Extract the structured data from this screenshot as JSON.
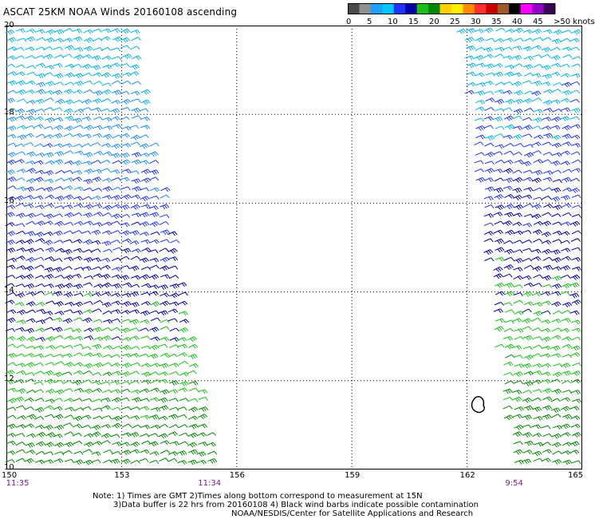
{
  "title": "ASCAT 25KM NOAA Winds 20160108 ascending",
  "legend": {
    "colors": [
      "#4a4a4a",
      "#909090",
      "#1ea0ff",
      "#00c8ff",
      "#1f33ff",
      "#0000a8",
      "#16c016",
      "#008800",
      "#ffd000",
      "#ffee00",
      "#ff8a00",
      "#ff3030",
      "#cc0000",
      "#a05a28",
      "#000000",
      "#ff00ff",
      "#9600c8",
      "#3c005a"
    ],
    "labels": [
      "0",
      "5",
      "10",
      "15",
      "20",
      "25",
      "30",
      "35",
      "40",
      "45",
      ">50 knots"
    ],
    "tick_values": [
      0,
      5,
      10,
      15,
      20,
      25,
      30,
      35,
      40,
      45,
      50
    ]
  },
  "map": {
    "lat_labels": [
      "20",
      "18",
      "16",
      "14",
      "12",
      "10"
    ],
    "lat_values": [
      20,
      18,
      16,
      14,
      12,
      10
    ],
    "lon_labels": [
      "150",
      "153",
      "156",
      "159",
      "162",
      "165"
    ],
    "lon_values": [
      150,
      153,
      156,
      159,
      162,
      165
    ],
    "lon_range": [
      150,
      165
    ],
    "lat_range": [
      10,
      20
    ],
    "grid": "dotted",
    "pass_times": [
      {
        "text": "11:35",
        "lon": 150.2
      },
      {
        "text": "11:34",
        "lon": 155.2
      },
      {
        "text": "9:54",
        "lon": 163.2
      }
    ],
    "swaths": [
      {
        "edges": [
          [
            150.0,
            20.0
          ],
          [
            153.3,
            20.0
          ],
          [
            155.5,
            10.0
          ],
          [
            150.0,
            10.0
          ]
        ],
        "colors": [
          "#00b4e6",
          "#1a8cff",
          "#1f33ff",
          "#0000a8",
          "#16c016",
          "#008800"
        ]
      },
      {
        "edges": [
          [
            161.8,
            20.0
          ],
          [
            165.0,
            20.0
          ],
          [
            165.0,
            10.0
          ],
          [
            163.2,
            10.0
          ]
        ],
        "colors": [
          "#00b4e6",
          "#1f33ff",
          "#0000a8",
          "#16c016",
          "#008800"
        ]
      }
    ]
  },
  "notes": [
    "Note: 1) Times are GMT 2)Times along bottom correspond to measurement at 15N",
    "3)Data buffer is 22 hrs from 20160108 4) Black wind barbs indicate possible contamination",
    "NOAA/NESDIS/Center for Satellite Applications and Research"
  ]
}
